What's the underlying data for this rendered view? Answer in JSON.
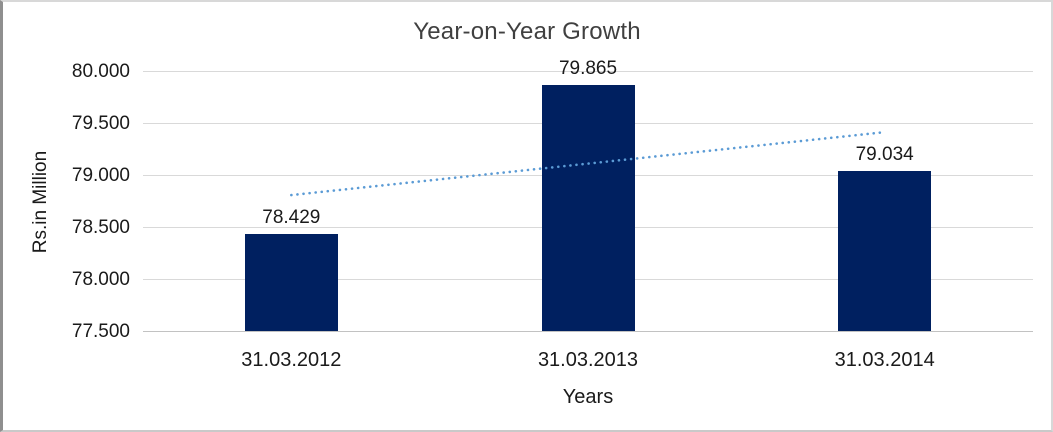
{
  "chart_data": {
    "type": "bar",
    "title": "Year-on-Year Growth",
    "xlabel": "Years",
    "ylabel": "Rs.in Million",
    "categories": [
      "31.03.2012",
      "31.03.2013",
      "31.03.2014"
    ],
    "values": [
      78.429,
      79.865,
      79.034
    ],
    "data_labels": [
      "78.429",
      "79.865",
      "79.034"
    ],
    "ylim": [
      77.5,
      80.0
    ],
    "ytick_step": 0.5,
    "ytick_labels": [
      "77.500",
      "78.000",
      "78.500",
      "79.000",
      "79.500",
      "80.000"
    ],
    "grid": true,
    "legend_position": "none",
    "bar_color": "#002060",
    "gridline_color": "#d9d9d9",
    "trendline": {
      "type": "linear",
      "style": "dotted",
      "color": "#5b9bd5",
      "start_value": 78.807,
      "end_value": 79.412
    }
  }
}
